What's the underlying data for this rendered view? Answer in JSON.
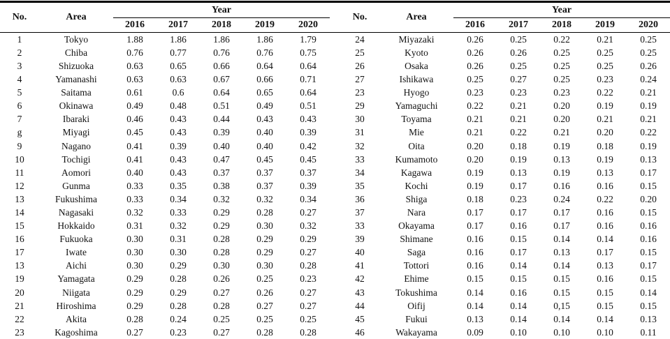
{
  "table": {
    "header": {
      "no": "No.",
      "area": "Area",
      "year": "Year",
      "years": [
        "2016",
        "2017",
        "2018",
        "2019",
        "2020"
      ]
    },
    "left_rows": [
      {
        "no": "1",
        "area": "Tokyo",
        "values": [
          "1.88",
          "1.86",
          "1.86",
          "1.86",
          "1.79"
        ]
      },
      {
        "no": "2",
        "area": "Chiba",
        "values": [
          "0.76",
          "0.77",
          "0.76",
          "0.76",
          "0.75"
        ]
      },
      {
        "no": "3",
        "area": "Shizuoka",
        "values": [
          "0.63",
          "0.65",
          "0.66",
          "0.64",
          "0.64"
        ]
      },
      {
        "no": "4",
        "area": "Yamanashi",
        "values": [
          "0.63",
          "0.63",
          "0.67",
          "0.66",
          "0.71"
        ]
      },
      {
        "no": "5",
        "area": "Saitama",
        "values": [
          "0.61",
          "0.6",
          "0.64",
          "0.65",
          "0.64"
        ]
      },
      {
        "no": "6",
        "area": "Okinawa",
        "values": [
          "0.49",
          "0.48",
          "0.51",
          "0.49",
          "0.51"
        ]
      },
      {
        "no": "7",
        "area": "Ibaraki",
        "values": [
          "0.46",
          "0.43",
          "0.44",
          "0.43",
          "0.43"
        ]
      },
      {
        "no": "g",
        "area": "Miyagi",
        "values": [
          "0.45",
          "0.43",
          "0.39",
          "0.40",
          "0.39"
        ]
      },
      {
        "no": "9",
        "area": "Nagano",
        "values": [
          "0.41",
          "0.39",
          "0.40",
          "0.40",
          "0.42"
        ]
      },
      {
        "no": "10",
        "area": "Tochigi",
        "values": [
          "0.41",
          "0.43",
          "0.47",
          "0.45",
          "0.45"
        ]
      },
      {
        "no": "11",
        "area": "Aomori",
        "values": [
          "0.40",
          "0.43",
          "0.37",
          "0.37",
          "0.37"
        ]
      },
      {
        "no": "12",
        "area": "Gunma",
        "values": [
          "0.33",
          "0.35",
          "0.38",
          "0.37",
          "0.39"
        ]
      },
      {
        "no": "13",
        "area": "Fukushima",
        "values": [
          "0.33",
          "0.34",
          "0.32",
          "0.32",
          "0.34"
        ]
      },
      {
        "no": "14",
        "area": "Nagasaki",
        "values": [
          "0.32",
          "0.33",
          "0.29",
          "0.28",
          "0.27"
        ]
      },
      {
        "no": "15",
        "area": "Hokkaido",
        "values": [
          "0.31",
          "0.32",
          "0.29",
          "0.30",
          "0.32"
        ]
      },
      {
        "no": "16",
        "area": "Fukuoka",
        "values": [
          "0.30",
          "0.31",
          "0.28",
          "0.29",
          "0.29"
        ]
      },
      {
        "no": "17",
        "area": "Iwate",
        "values": [
          "0.30",
          "0.30",
          "0.28",
          "0.29",
          "0.27"
        ]
      },
      {
        "no": "13",
        "area": "Aichi",
        "values": [
          "0.30",
          "0.29",
          "0.30",
          "0.30",
          "0.28"
        ]
      },
      {
        "no": "19",
        "area": "Yamagata",
        "values": [
          "0.29",
          "0.28",
          "0.26",
          "0.25",
          "0.23"
        ]
      },
      {
        "no": "20",
        "area": "Niigata",
        "values": [
          "0.29",
          "0.29",
          "0.27",
          "0.26",
          "0.27"
        ]
      },
      {
        "no": "21",
        "area": "Hiroshima",
        "values": [
          "0.29",
          "0.28",
          "0.28",
          "0.27",
          "0.27"
        ]
      },
      {
        "no": "22",
        "area": "Akita",
        "values": [
          "0.28",
          "0.24",
          "0.25",
          "0.25",
          "0.25"
        ]
      },
      {
        "no": "23",
        "area": "Kagoshima",
        "values": [
          "0.27",
          "0.23",
          "0.27",
          "0.28",
          "0.28"
        ]
      }
    ],
    "right_rows": [
      {
        "no": "24",
        "area": "Miyazaki",
        "values": [
          "0.26",
          "0.25",
          "0.22",
          "0.21",
          "0.25"
        ]
      },
      {
        "no": "25",
        "area": "Kyoto",
        "values": [
          "0.26",
          "0.26",
          "0.25",
          "0.25",
          "0.25"
        ]
      },
      {
        "no": "26",
        "area": "Osaka",
        "values": [
          "0.26",
          "0.25",
          "0.25",
          "0.25",
          "0.26"
        ]
      },
      {
        "no": "27",
        "area": "Ishikawa",
        "values": [
          "0.25",
          "0.27",
          "0.25",
          "0.23",
          "0.24"
        ]
      },
      {
        "no": "23",
        "area": "Hyogo",
        "values": [
          "0.23",
          "0.23",
          "0.23",
          "0.22",
          "0.21"
        ]
      },
      {
        "no": "29",
        "area": "Yamaguchi",
        "values": [
          "0.22",
          "0.21",
          "0.20",
          "0.19",
          "0.19"
        ]
      },
      {
        "no": "30",
        "area": "Toyama",
        "values": [
          "0.21",
          "0.21",
          "0.20",
          "0.21",
          "0.21"
        ]
      },
      {
        "no": "31",
        "area": "Mie",
        "values": [
          "0.21",
          "0.22",
          "0.21",
          "0.20",
          "0.22"
        ]
      },
      {
        "no": "32",
        "area": "Oita",
        "values": [
          "0.20",
          "0.18",
          "0.19",
          "0.18",
          "0.19"
        ]
      },
      {
        "no": "33",
        "area": "Kumamoto",
        "values": [
          "0.20",
          "0.19",
          "0.13",
          "0.19",
          "0.13"
        ]
      },
      {
        "no": "34",
        "area": "Kagawa",
        "values": [
          "0.19",
          "0.13",
          "0.19",
          "0.13",
          "0.17"
        ]
      },
      {
        "no": "35",
        "area": "Kochi",
        "values": [
          "0.19",
          "0.17",
          "0.16",
          "0.16",
          "0.15"
        ]
      },
      {
        "no": "36",
        "area": "Shiga",
        "values": [
          "0.18",
          "0.23",
          "0.24",
          "0.22",
          "0.20"
        ]
      },
      {
        "no": "37",
        "area": "Nara",
        "values": [
          "0.17",
          "0.17",
          "0.17",
          "0.16",
          "0.15"
        ]
      },
      {
        "no": "33",
        "area": "Okayama",
        "values": [
          "0.17",
          "0.16",
          "0.17",
          "0.16",
          "0.16"
        ]
      },
      {
        "no": "39",
        "area": "Shimane",
        "values": [
          "0.16",
          "0.15",
          "0.14",
          "0.14",
          "0.16"
        ]
      },
      {
        "no": "40",
        "area": "Saga",
        "values": [
          "0.16",
          "0.17",
          "0.13",
          "0.17",
          "0.15"
        ]
      },
      {
        "no": "41",
        "area": "Tottori",
        "values": [
          "0.16",
          "0.14",
          "0.14",
          "0.13",
          "0.17"
        ]
      },
      {
        "no": "42",
        "area": "Ehime",
        "values": [
          "0.15",
          "0.15",
          "0.15",
          "0.16",
          "0.15"
        ]
      },
      {
        "no": "43",
        "area": "Tokushima",
        "values": [
          "0.14",
          "0.16",
          "0.15",
          "0.15",
          "0.14"
        ]
      },
      {
        "no": "44",
        "area": "Oifij",
        "values": [
          "0.14",
          "0.14",
          "0,15",
          "0.15",
          "0.15"
        ]
      },
      {
        "no": "45",
        "area": "Fukui",
        "values": [
          "0.13",
          "0.14",
          "0.14",
          "0.14",
          "0.13"
        ]
      },
      {
        "no": "46",
        "area": "Wakayama",
        "values": [
          "0.09",
          "0.10",
          "0.10",
          "0.10",
          "0.11"
        ]
      }
    ]
  },
  "colors": {
    "background": "#ffffff",
    "text": "#111111",
    "rule": "#000000"
  }
}
